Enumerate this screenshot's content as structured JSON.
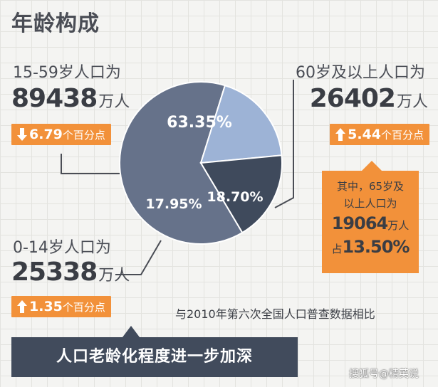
{
  "title": "年龄构成",
  "groups": {
    "age_15_59": {
      "label": "15-59岁人口为",
      "value": "89438",
      "unit": "万人",
      "change_value": "6.79",
      "change_unit": "个百分点",
      "direction": "down"
    },
    "age_60_plus": {
      "label": "60岁及以上人口为",
      "value": "26402",
      "unit": "万人",
      "change_value": "5.44",
      "change_unit": "个百分点",
      "direction": "up"
    },
    "age_0_14": {
      "label": "0-14岁人口为",
      "value": "25338",
      "unit": "万人",
      "change_value": "1.35",
      "change_unit": "个百分点",
      "direction": "up"
    }
  },
  "callout": {
    "line1": "其中，65岁及",
    "line2": "以上人口为",
    "value": "19064",
    "unit": "万人",
    "share_prefix": "占",
    "share_value": "13.50%"
  },
  "note": "与2010年第六次全国人口普查数据相比",
  "banner": "人口老龄化程度进一步加深",
  "watermark": "搜狐号@精英说",
  "colors": {
    "accent": "#f2913a",
    "slice_15_59": "#66728a",
    "slice_60_plus": "#9db3d6",
    "slice_0_14": "#3f4a5c"
  },
  "chart_data": {
    "type": "pie",
    "slices": [
      {
        "label": "63.35%",
        "value": 63.35,
        "color": "#66728a"
      },
      {
        "label": "18.70%",
        "value": 18.7,
        "color": "#9db3d6"
      },
      {
        "label": "17.95%",
        "value": 17.95,
        "color": "#3f4a5c"
      }
    ]
  }
}
